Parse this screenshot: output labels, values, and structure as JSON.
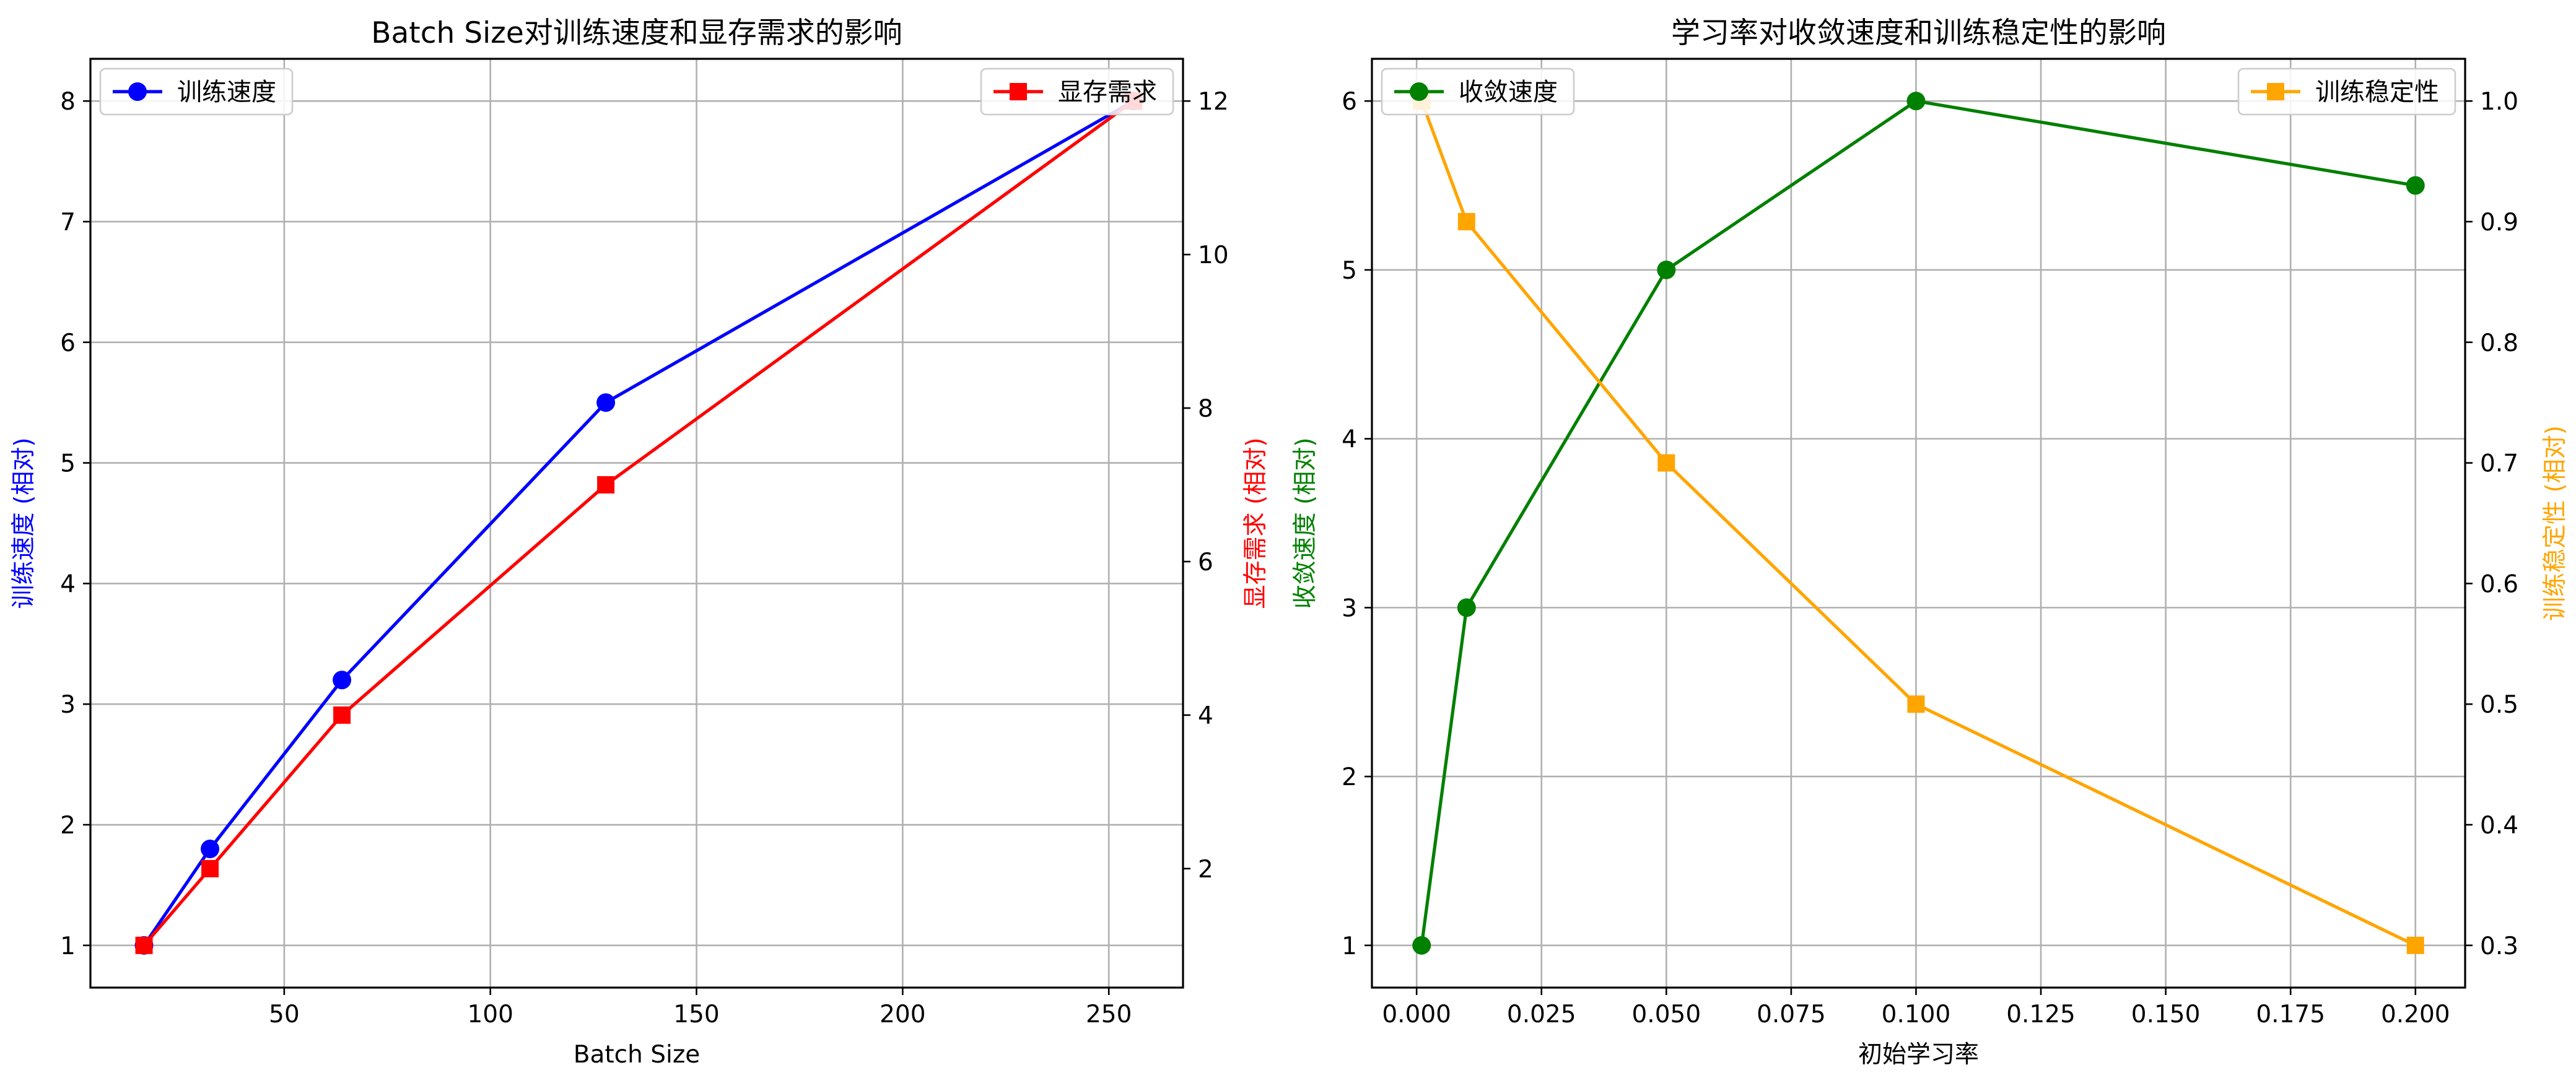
{
  "chart_data": [
    {
      "type": "line",
      "title": "Batch Size对训练速度和显存需求的影响",
      "xlabel": "Batch Size",
      "ylabel": "训练速度 (相对)",
      "ylabel_right": "显存需求 (相对)",
      "x": [
        16,
        32,
        64,
        128,
        256
      ],
      "xlim": [
        3,
        268
      ],
      "xticks": [
        50,
        100,
        150,
        200,
        250
      ],
      "ylim": [
        0.65,
        8.35
      ],
      "yticks": [
        1,
        2,
        3,
        4,
        5,
        6,
        7,
        8
      ],
      "ylim_right": [
        0.45,
        12.55
      ],
      "yticks_right": [
        2,
        4,
        6,
        8,
        10,
        12
      ],
      "grid": true,
      "series": [
        {
          "name": "训练速度",
          "axis": "left",
          "marker": "circle",
          "color": "#0000ff",
          "values": [
            1,
            1.8,
            3.2,
            5.5,
            8
          ]
        },
        {
          "name": "显存需求",
          "axis": "right",
          "marker": "square",
          "color": "#ff0000",
          "values": [
            1,
            2,
            4,
            7,
            12
          ]
        }
      ],
      "legend_left": "top-left",
      "legend_right": "top-right",
      "ylabel_color": "#0000ff",
      "ylabel_right_color": "#ff0000"
    },
    {
      "type": "line",
      "title": "学习率对收敛速度和训练稳定性的影响",
      "xlabel": "初始学习率",
      "ylabel": "收敛速度 (相对)",
      "ylabel_right": "训练稳定性 (相对)",
      "x": [
        0.001,
        0.01,
        0.05,
        0.1,
        0.2
      ],
      "xlim": [
        -0.00895,
        0.20995
      ],
      "xticks": [
        0.0,
        0.025,
        0.05,
        0.075,
        0.1,
        0.125,
        0.15,
        0.175,
        0.2
      ],
      "xtick_labels": [
        "0.000",
        "0.025",
        "0.050",
        "0.075",
        "0.100",
        "0.125",
        "0.150",
        "0.175",
        "0.200"
      ],
      "ylim": [
        0.75,
        6.25
      ],
      "yticks": [
        1,
        2,
        3,
        4,
        5,
        6
      ],
      "ylim_right": [
        0.265,
        1.035
      ],
      "yticks_right": [
        0.3,
        0.4,
        0.5,
        0.6,
        0.7,
        0.8,
        0.9,
        1.0
      ],
      "ytick_right_labels": [
        "0.3",
        "0.4",
        "0.5",
        "0.6",
        "0.7",
        "0.8",
        "0.9",
        "1.0"
      ],
      "grid": true,
      "series": [
        {
          "name": "收敛速度",
          "axis": "left",
          "marker": "circle",
          "color": "#008000",
          "values": [
            1,
            3,
            5,
            6,
            5.5
          ]
        },
        {
          "name": "训练稳定性",
          "axis": "right",
          "marker": "square",
          "color": "#ffa500",
          "values": [
            1.0,
            0.9,
            0.7,
            0.5,
            0.3
          ]
        }
      ],
      "legend_left": "top-left",
      "legend_right": "top-right",
      "ylabel_color": "#008000",
      "ylabel_right_color": "#ffa500"
    }
  ]
}
